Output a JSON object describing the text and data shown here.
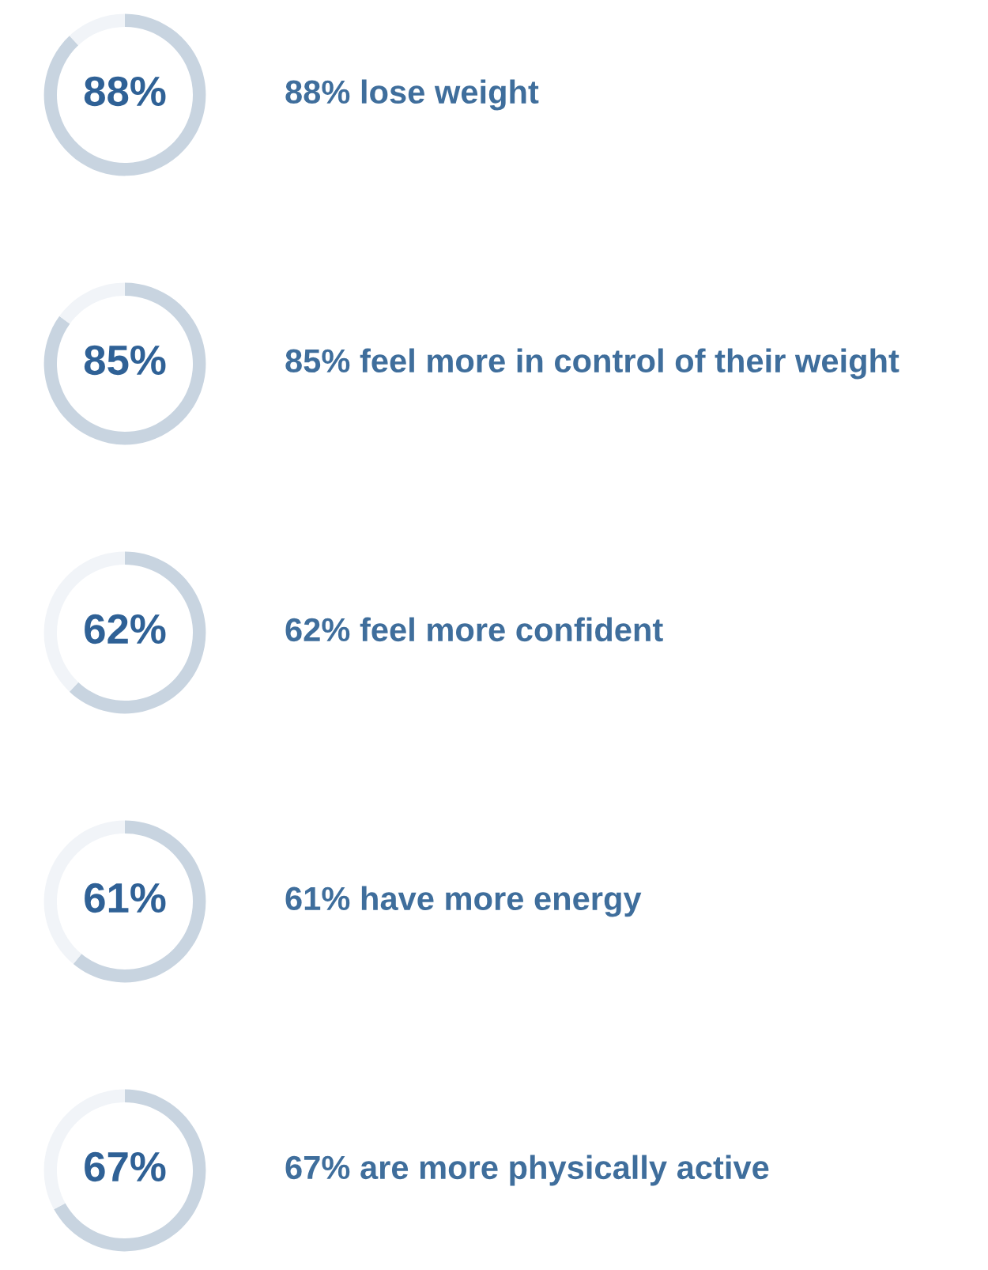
{
  "chart_data": [
    {
      "type": "donut",
      "categories": [
        null,
        null
      ],
      "values": [
        88,
        12
      ],
      "colors": [
        "#c8d4e0",
        "#f1f4f8"
      ],
      "value_labels": [
        "88%",
        null
      ],
      "annotations": [
        "88% lose weight"
      ]
    },
    {
      "type": "donut",
      "categories": [
        null,
        null
      ],
      "values": [
        85,
        15
      ],
      "colors": [
        "#c8d4e0",
        "#f1f4f8"
      ],
      "value_labels": [
        "85%",
        null
      ],
      "annotations": [
        "85% feel more in control of their weight"
      ]
    },
    {
      "type": "donut",
      "categories": [
        null,
        null
      ],
      "values": [
        62,
        38
      ],
      "colors": [
        "#c8d4e0",
        "#f1f4f8"
      ],
      "value_labels": [
        "62%",
        null
      ],
      "annotations": [
        "62% feel more confident"
      ]
    },
    {
      "type": "donut",
      "categories": [
        null,
        null
      ],
      "values": [
        61,
        39
      ],
      "colors": [
        "#c8d4e0",
        "#f1f4f8"
      ],
      "value_labels": [
        "61%",
        null
      ],
      "annotations": [
        "61% have more energy"
      ]
    },
    {
      "type": "donut",
      "categories": [
        null,
        null
      ],
      "values": [
        67,
        33
      ],
      "colors": [
        "#c8d4e0",
        "#f1f4f8"
      ],
      "value_labels": [
        "67%",
        null
      ],
      "annotations": [
        "67% are more physically active"
      ]
    }
  ]
}
